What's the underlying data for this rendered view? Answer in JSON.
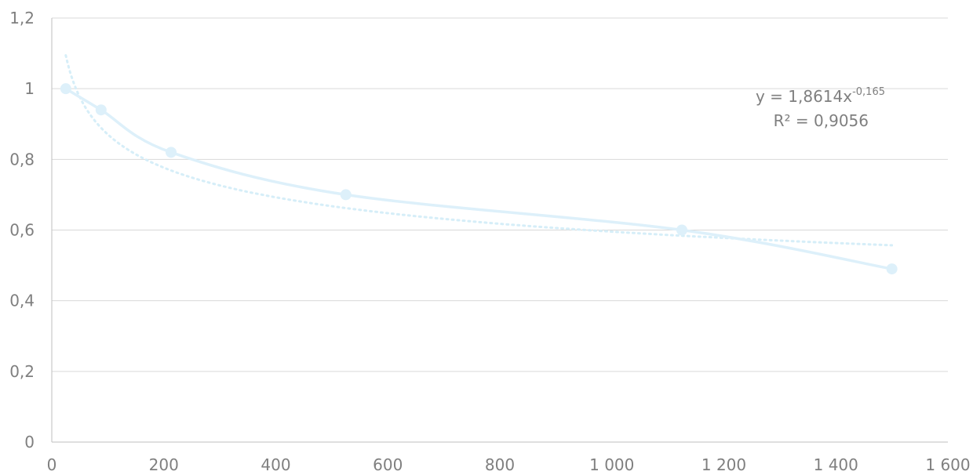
{
  "chart_data": {
    "type": "scatter",
    "title": "",
    "xlabel": "",
    "ylabel": "",
    "xlim": [
      0,
      1600
    ],
    "ylim": [
      0,
      1.2
    ],
    "x_ticks": [
      {
        "value": 0,
        "label": "0"
      },
      {
        "value": 200,
        "label": "200"
      },
      {
        "value": 400,
        "label": "400"
      },
      {
        "value": 600,
        "label": "600"
      },
      {
        "value": 800,
        "label": "800"
      },
      {
        "value": 1000,
        "label": "1 000"
      },
      {
        "value": 1200,
        "label": "1 200"
      },
      {
        "value": 1400,
        "label": "1 400"
      },
      {
        "value": 1600,
        "label": "1 600"
      }
    ],
    "y_ticks": [
      {
        "value": 0,
        "label": "0"
      },
      {
        "value": 0.2,
        "label": "0,2"
      },
      {
        "value": 0.4,
        "label": "0,4"
      },
      {
        "value": 0.6,
        "label": "0,6"
      },
      {
        "value": 0.8,
        "label": "0,8"
      },
      {
        "value": 1.0,
        "label": "1"
      },
      {
        "value": 1.2,
        "label": "1,2"
      }
    ],
    "grid": "horizontal",
    "series": [
      {
        "x": [
          25,
          88,
          213,
          525,
          1125,
          1500
        ],
        "y": [
          1.0,
          0.94,
          0.82,
          0.7,
          0.6,
          0.49
        ],
        "style": "smooth-line-with-markers",
        "color": "#ddf0fa"
      }
    ],
    "trendline": {
      "kind": "power",
      "coefficient": 1.8614,
      "exponent": -0.165,
      "x_range": [
        25,
        1500
      ],
      "style": "dotted",
      "color": "#d6eef8",
      "equation_prefix": "y = 1,8614x",
      "equation_exponent": "-0,165",
      "r_squared_label": "R² = 0,9056"
    }
  }
}
